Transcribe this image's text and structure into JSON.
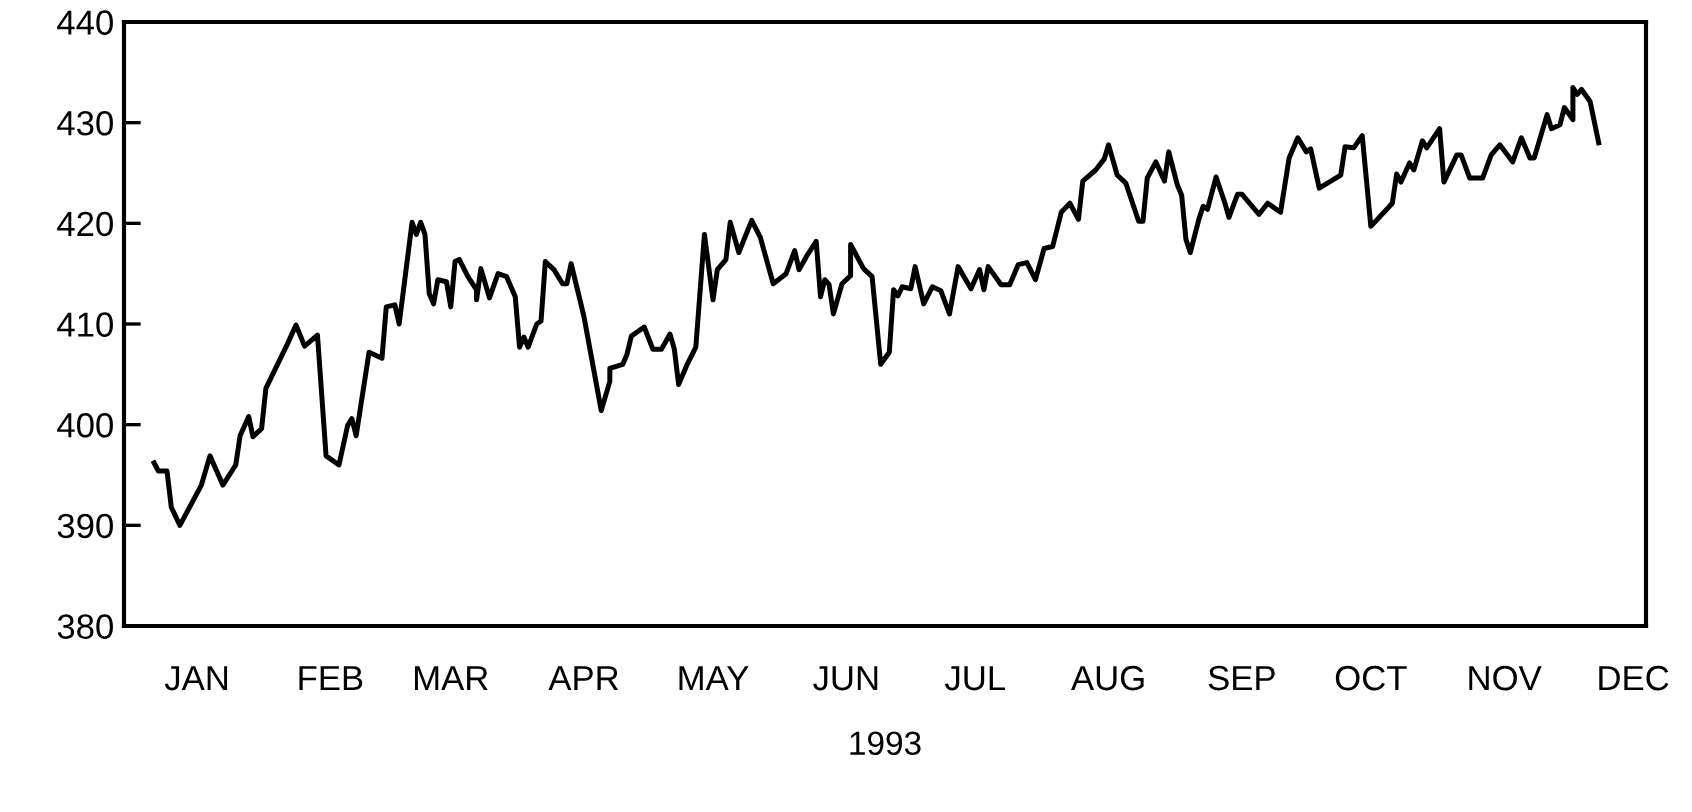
{
  "chart_data": {
    "type": "line",
    "xlabel": "1993",
    "color": "#000000",
    "line_style": "solid",
    "marker": "none",
    "grid": false,
    "legend": false,
    "xlim": [
      "1992-12-29",
      "1993-12-18"
    ],
    "xticks": [
      {
        "value": "1993-01-15",
        "label": "JAN"
      },
      {
        "value": "1993-02-15",
        "label": "FEB"
      },
      {
        "value": "1993-03-15",
        "label": "MAR"
      },
      {
        "value": "1993-04-15",
        "label": "APR"
      },
      {
        "value": "1993-05-15",
        "label": "MAY"
      },
      {
        "value": "1993-06-15",
        "label": "JUN"
      },
      {
        "value": "1993-07-15",
        "label": "JUL"
      },
      {
        "value": "1993-08-15",
        "label": "AUG"
      },
      {
        "value": "1993-09-15",
        "label": "SEP"
      },
      {
        "value": "1993-10-15",
        "label": "OCT"
      },
      {
        "value": "1993-11-15",
        "label": "NOV"
      },
      {
        "value": "1993-12-15",
        "label": "DEC"
      }
    ],
    "ylim": [
      380,
      440
    ],
    "yticks": [
      380,
      390,
      400,
      410,
      420,
      430,
      440
    ],
    "x": [
      "1993-01-05",
      "1993-01-06",
      "1993-01-08",
      "1993-01-09",
      "1993-01-11",
      "1993-01-16",
      "1993-01-18",
      "1993-01-21",
      "1993-01-24",
      "1993-01-25",
      "1993-01-27",
      "1993-01-28",
      "1993-01-30",
      "1993-01-31",
      "1993-02-05",
      "1993-02-07",
      "1993-02-09",
      "1993-02-12",
      "1993-02-14",
      "1993-02-17",
      "1993-02-19",
      "1993-02-20",
      "1993-02-21",
      "1993-02-24",
      "1993-02-27",
      "1993-02-28",
      "1993-03-02",
      "1993-03-03",
      "1993-03-06",
      "1993-03-07",
      "1993-03-08",
      "1993-03-09",
      "1993-03-10",
      "1993-03-11",
      "1993-03-12",
      "1993-03-14",
      "1993-03-15",
      "1993-03-16",
      "1993-03-17",
      "1993-03-19",
      "1993-03-21",
      "1993-03-21",
      "1993-03-22",
      "1993-03-24",
      "1993-03-26",
      "1993-03-28",
      "1993-03-30",
      "1993-03-31",
      "1993-04-01",
      "1993-04-02",
      "1993-04-04",
      "1993-04-05",
      "1993-04-06",
      "1993-04-08",
      "1993-04-10",
      "1993-04-11",
      "1993-04-12",
      "1993-04-15",
      "1993-04-19",
      "1993-04-21",
      "1993-04-21",
      "1993-04-24",
      "1993-04-25",
      "1993-04-26",
      "1993-04-29",
      "1993-05-01",
      "1993-05-03",
      "1993-05-05",
      "1993-05-06",
      "1993-05-07",
      "1993-05-09",
      "1993-05-11",
      "1993-05-13",
      "1993-05-15",
      "1993-05-16",
      "1993-05-18",
      "1993-05-19",
      "1993-05-21",
      "1993-05-24",
      "1993-05-26",
      "1993-05-29",
      "1993-06-01",
      "1993-06-03",
      "1993-06-04",
      "1993-06-06",
      "1993-06-08",
      "1993-06-09",
      "1993-06-10",
      "1993-06-11",
      "1993-06-12",
      "1993-06-14",
      "1993-06-16",
      "1993-06-16",
      "1993-06-19",
      "1993-06-21",
      "1993-06-23",
      "1993-06-25",
      "1993-06-26",
      "1993-06-27",
      "1993-06-28",
      "1993-06-30",
      "1993-07-01",
      "1993-07-03",
      "1993-07-05",
      "1993-07-07",
      "1993-07-09",
      "1993-07-11",
      "1993-07-14",
      "1993-07-16",
      "1993-07-17",
      "1993-07-18",
      "1993-07-21",
      "1993-07-23",
      "1993-07-25",
      "1993-07-27",
      "1993-07-29",
      "1993-07-31",
      "1993-08-02",
      "1993-08-04",
      "1993-08-06",
      "1993-08-08",
      "1993-08-09",
      "1993-08-12",
      "1993-08-14",
      "1993-08-15",
      "1993-08-17",
      "1993-08-19",
      "1993-08-22",
      "1993-08-23",
      "1993-08-24",
      "1993-08-26",
      "1993-08-28",
      "1993-08-29",
      "1993-08-31",
      "1993-09-01",
      "1993-09-02",
      "1993-09-03",
      "1993-09-05",
      "1993-09-06",
      "1993-09-07",
      "1993-09-09",
      "1993-09-11",
      "1993-09-12",
      "1993-09-14",
      "1993-09-15",
      "1993-09-19",
      "1993-09-21",
      "1993-09-24",
      "1993-09-26",
      "1993-09-28",
      "1993-09-30",
      "1993-10-01",
      "1993-10-03",
      "1993-10-08",
      "1993-10-09",
      "1993-10-11",
      "1993-10-13",
      "1993-10-15",
      "1993-10-20",
      "1993-10-21",
      "1993-10-22",
      "1993-10-24",
      "1993-10-25",
      "1993-10-27",
      "1993-10-28",
      "1993-10-31",
      "1993-11-01",
      "1993-11-04",
      "1993-11-05",
      "1993-11-07",
      "1993-11-10",
      "1993-11-12",
      "1993-11-14",
      "1993-11-17",
      "1993-11-19",
      "1993-11-21",
      "1993-11-22",
      "1993-11-25",
      "1993-11-26",
      "1993-11-28",
      "1993-11-29",
      "1993-12-01",
      "1993-12-01",
      "1993-12-02",
      "1993-12-03",
      "1993-12-05",
      "1993-12-07"
    ],
    "values": [
      396.2,
      395.4,
      395.4,
      391.8,
      390.0,
      394.0,
      396.9,
      394.0,
      396.0,
      398.9,
      400.8,
      398.8,
      399.6,
      403.6,
      408.0,
      409.9,
      407.8,
      408.9,
      396.9,
      396.0,
      399.9,
      400.6,
      398.9,
      407.2,
      406.6,
      411.7,
      411.9,
      410.0,
      420.1,
      418.9,
      420.1,
      418.9,
      413.0,
      412.0,
      414.4,
      414.2,
      411.7,
      416.2,
      416.4,
      414.7,
      413.4,
      412.4,
      415.5,
      412.6,
      415.0,
      414.7,
      412.7,
      407.7,
      408.7,
      407.7,
      410.0,
      410.3,
      416.2,
      415.4,
      414.0,
      414.0,
      416.0,
      410.7,
      401.4,
      404.3,
      405.6,
      406.0,
      407.0,
      408.8,
      409.7,
      407.5,
      407.5,
      409.0,
      407.5,
      404.0,
      406.0,
      407.7,
      418.9,
      412.4,
      415.4,
      416.4,
      420.1,
      417.1,
      420.3,
      418.6,
      414.0,
      415.0,
      417.3,
      415.4,
      416.9,
      418.2,
      412.7,
      414.4,
      413.9,
      411.0,
      414.0,
      414.8,
      417.9,
      415.5,
      414.7,
      406.0,
      407.2,
      413.4,
      412.8,
      413.7,
      413.5,
      415.7,
      412.0,
      413.7,
      413.3,
      411.0,
      415.7,
      413.5,
      415.4,
      413.4,
      415.7,
      413.9,
      413.9,
      415.9,
      416.1,
      414.4,
      417.5,
      417.7,
      421.1,
      422.0,
      420.4,
      424.2,
      425.3,
      426.4,
      427.8,
      424.8,
      424.0,
      420.2,
      420.2,
      424.5,
      426.1,
      424.2,
      427.1,
      423.8,
      422.8,
      418.4,
      417.1,
      420.4,
      421.7,
      421.4,
      424.6,
      422.1,
      420.6,
      422.9,
      422.9,
      420.9,
      422.0,
      421.1,
      426.5,
      428.5,
      427.1,
      427.4,
      423.5,
      424.8,
      427.6,
      427.5,
      428.7,
      419.7,
      422.0,
      424.9,
      424.1,
      426.0,
      425.3,
      428.2,
      427.5,
      429.4,
      424.1,
      426.8,
      426.8,
      424.5,
      424.5,
      426.8,
      427.8,
      426.1,
      428.5,
      426.5,
      426.5,
      430.8,
      429.4,
      429.8,
      431.5,
      430.3,
      433.5,
      432.8,
      433.3,
      432.1,
      428.0
    ]
  }
}
